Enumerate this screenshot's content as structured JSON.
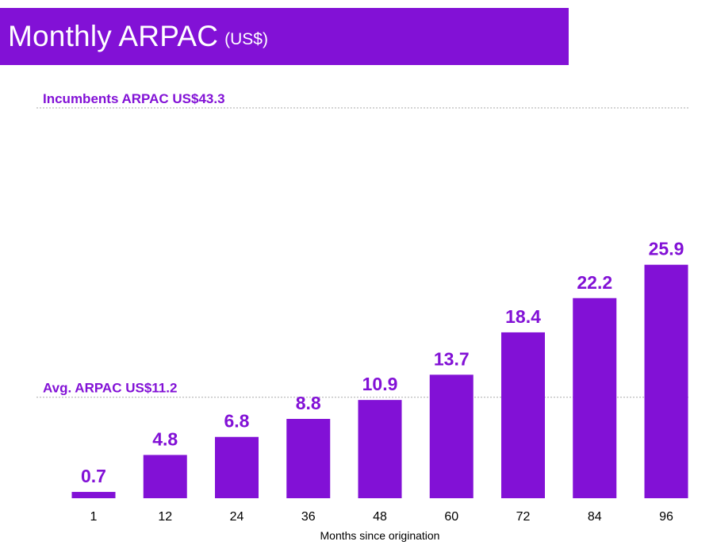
{
  "header": {
    "title": "Monthly ARPAC",
    "unit": "(US$)"
  },
  "colors": {
    "accent": "#8211d6",
    "bar": "#8211d6",
    "label": "#8211d6",
    "reference_line": "#aaaaaa"
  },
  "chart_data": {
    "type": "bar",
    "categories": [
      "1",
      "12",
      "24",
      "36",
      "48",
      "60",
      "72",
      "84",
      "96"
    ],
    "values": [
      0.7,
      4.8,
      6.8,
      8.8,
      10.9,
      13.7,
      18.4,
      22.2,
      25.9
    ],
    "value_labels": [
      "0.7",
      "4.8",
      "6.8",
      "8.8",
      "10.9",
      "13.7",
      "18.4",
      "22.2",
      "25.9"
    ],
    "title": "Monthly ARPAC",
    "xlabel": "Months since origination",
    "ylabel": "",
    "ylim": [
      0,
      43.3
    ],
    "grid": false,
    "reference_lines": [
      {
        "label": "Incumbents ARPAC US$43.3",
        "value": 43.3,
        "style": "dotted"
      },
      {
        "label": "Avg. ARPAC US$11.2",
        "value": 11.2,
        "style": "dotted"
      }
    ]
  }
}
